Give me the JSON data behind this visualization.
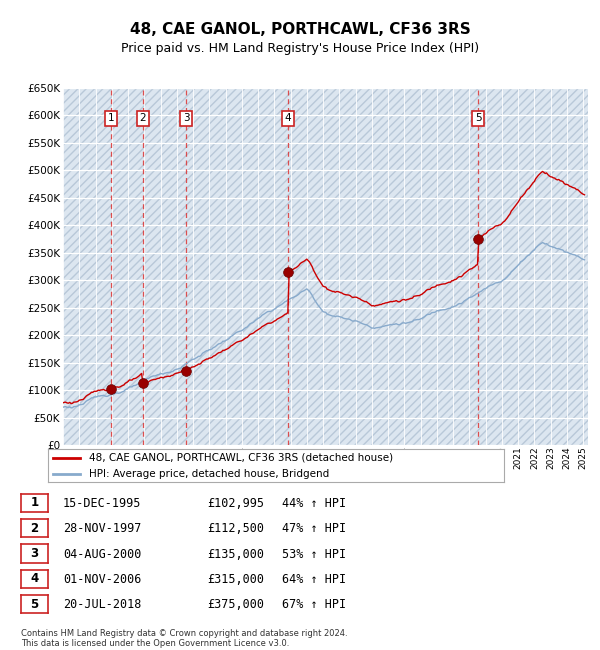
{
  "title": "48, CAE GANOL, PORTHCAWL, CF36 3RS",
  "subtitle": "Price paid vs. HM Land Registry's House Price Index (HPI)",
  "ylim": [
    0,
    650000
  ],
  "yticks": [
    0,
    50000,
    100000,
    150000,
    200000,
    250000,
    300000,
    350000,
    400000,
    450000,
    500000,
    550000,
    600000,
    650000
  ],
  "xlim_start": 1993.0,
  "xlim_end": 2025.3,
  "sale_dates": [
    1995.96,
    1997.91,
    2000.59,
    2006.84,
    2018.55
  ],
  "sale_prices": [
    102995,
    112500,
    135000,
    315000,
    375000
  ],
  "sale_labels": [
    "1",
    "2",
    "3",
    "4",
    "5"
  ],
  "sale_label_dates": [
    "15-DEC-1995",
    "28-NOV-1997",
    "04-AUG-2000",
    "01-NOV-2006",
    "20-JUL-2018"
  ],
  "sale_label_prices": [
    "£102,995",
    "£112,500",
    "£135,000",
    "£315,000",
    "£375,000"
  ],
  "sale_label_hpi": [
    "44% ↑ HPI",
    "47% ↑ HPI",
    "53% ↑ HPI",
    "64% ↑ HPI",
    "67% ↑ HPI"
  ],
  "line_color_red": "#cc0000",
  "line_color_blue": "#88aacc",
  "dot_color_red": "#990000",
  "bg_fill": "#dce6f0",
  "bg_hatch_color": "#b8c8d8",
  "vline_color": "#dd3333",
  "box_color": "#cc2222",
  "legend_line1": "48, CAE GANOL, PORTHCAWL, CF36 3RS (detached house)",
  "legend_line2": "HPI: Average price, detached house, Bridgend",
  "footnote": "Contains HM Land Registry data © Crown copyright and database right 2024.\nThis data is licensed under the Open Government Licence v3.0.",
  "title_fontsize": 11,
  "subtitle_fontsize": 9
}
